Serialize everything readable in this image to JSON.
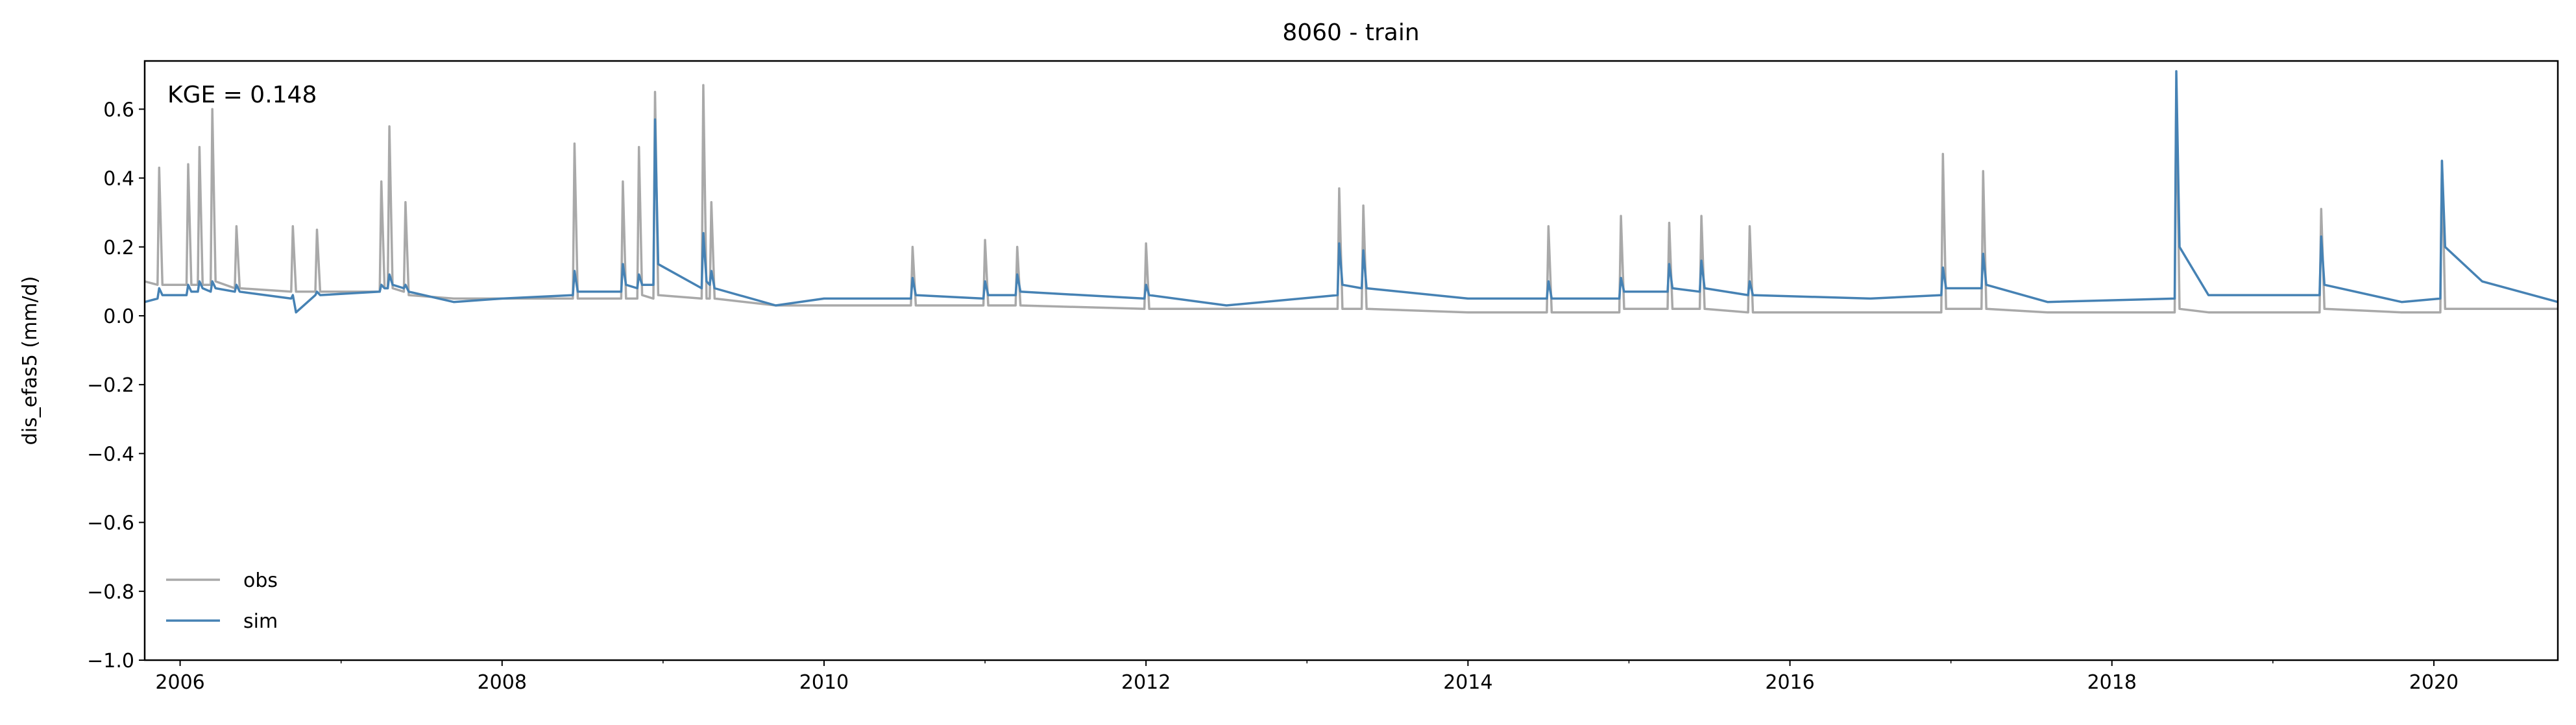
{
  "chart_data": {
    "type": "line",
    "title": "8060 - train",
    "ylabel": "dis_efas5 (mm/d)",
    "annotation": "KGE = 0.148",
    "legend": "lower left",
    "grid": false,
    "xlim": [
      2005.78,
      2020.77
    ],
    "xticks": [
      2006,
      2008,
      2010,
      2012,
      2014,
      2016,
      2018,
      2020
    ],
    "xminorticks": [
      2007,
      2009,
      2011,
      2013,
      2015,
      2017,
      2019
    ],
    "ylim": [
      -1.0,
      0.74
    ],
    "yticks": [
      {
        "value": -1.0,
        "label": "−1.0"
      },
      {
        "value": -0.8,
        "label": "−0.8"
      },
      {
        "value": -0.6,
        "label": "−0.6"
      },
      {
        "value": -0.4,
        "label": "−0.4"
      },
      {
        "value": -0.2,
        "label": "−0.2"
      },
      {
        "value": 0.0,
        "label": "0.0"
      },
      {
        "value": 0.2,
        "label": "0.2"
      },
      {
        "value": 0.4,
        "label": "0.4"
      },
      {
        "value": 0.6,
        "label": "0.6"
      }
    ],
    "x": [
      2005.78,
      2005.86,
      2005.87,
      2005.89,
      2006.04,
      2006.05,
      2006.07,
      2006.11,
      2006.12,
      2006.14,
      2006.19,
      2006.2,
      2006.22,
      2006.34,
      2006.35,
      2006.37,
      2006.69,
      2006.7,
      2006.72,
      2006.84,
      2006.85,
      2006.87,
      2007.24,
      2007.25,
      2007.27,
      2007.29,
      2007.3,
      2007.32,
      2007.39,
      2007.4,
      2007.42,
      2007.7,
      2008.0,
      2008.44,
      2008.45,
      2008.47,
      2008.74,
      2008.75,
      2008.77,
      2008.84,
      2008.85,
      2008.87,
      2008.94,
      2008.95,
      2008.97,
      2009.24,
      2009.25,
      2009.27,
      2009.29,
      2009.3,
      2009.32,
      2009.7,
      2010.0,
      2010.54,
      2010.55,
      2010.57,
      2010.99,
      2011.0,
      2011.02,
      2011.19,
      2011.2,
      2011.22,
      2011.99,
      2012.0,
      2012.02,
      2012.5,
      2013.19,
      2013.2,
      2013.22,
      2013.34,
      2013.35,
      2013.37,
      2014.0,
      2014.49,
      2014.5,
      2014.52,
      2014.94,
      2014.95,
      2014.97,
      2015.24,
      2015.25,
      2015.27,
      2015.44,
      2015.45,
      2015.47,
      2015.74,
      2015.75,
      2015.77,
      2016.5,
      2016.94,
      2016.95,
      2016.97,
      2017.19,
      2017.2,
      2017.22,
      2017.6,
      2018.39,
      2018.4,
      2018.42,
      2018.6,
      2019.29,
      2019.3,
      2019.32,
      2019.8,
      2020.04,
      2020.05,
      2020.07,
      2020.3,
      2020.77
    ],
    "series": [
      {
        "name": "obs",
        "color": "#a9a9a9",
        "values": [
          0.1,
          0.09,
          0.43,
          0.09,
          0.09,
          0.44,
          0.09,
          0.09,
          0.49,
          0.09,
          0.09,
          0.6,
          0.1,
          0.08,
          0.26,
          0.08,
          0.07,
          0.26,
          0.07,
          0.07,
          0.25,
          0.07,
          0.07,
          0.39,
          0.08,
          0.08,
          0.55,
          0.08,
          0.07,
          0.33,
          0.06,
          0.05,
          0.05,
          0.05,
          0.5,
          0.05,
          0.05,
          0.39,
          0.05,
          0.05,
          0.49,
          0.06,
          0.05,
          0.65,
          0.06,
          0.05,
          0.67,
          0.05,
          0.05,
          0.33,
          0.05,
          0.03,
          0.03,
          0.03,
          0.2,
          0.03,
          0.03,
          0.22,
          0.03,
          0.03,
          0.2,
          0.03,
          0.02,
          0.21,
          0.02,
          0.02,
          0.02,
          0.37,
          0.02,
          0.02,
          0.32,
          0.02,
          0.01,
          0.01,
          0.26,
          0.01,
          0.01,
          0.29,
          0.02,
          0.02,
          0.27,
          0.02,
          0.02,
          0.29,
          0.02,
          0.01,
          0.26,
          0.01,
          0.01,
          0.01,
          0.47,
          0.02,
          0.02,
          0.42,
          0.02,
          0.01,
          0.01,
          0.66,
          0.02,
          0.01,
          0.01,
          0.31,
          0.02,
          0.01,
          0.01,
          0.45,
          0.02,
          0.02,
          0.02
        ]
      },
      {
        "name": "sim",
        "color": "#4682b4",
        "values": [
          0.04,
          0.05,
          0.08,
          0.06,
          0.06,
          0.09,
          0.07,
          0.07,
          0.1,
          0.08,
          0.07,
          0.1,
          0.08,
          0.07,
          0.09,
          0.07,
          0.05,
          0.06,
          0.01,
          0.06,
          0.07,
          0.06,
          0.07,
          0.09,
          0.08,
          0.08,
          0.12,
          0.09,
          0.08,
          0.09,
          0.07,
          0.04,
          0.05,
          0.06,
          0.13,
          0.07,
          0.07,
          0.15,
          0.09,
          0.08,
          0.12,
          0.09,
          0.09,
          0.57,
          0.15,
          0.08,
          0.24,
          0.1,
          0.09,
          0.13,
          0.08,
          0.03,
          0.05,
          0.05,
          0.11,
          0.06,
          0.05,
          0.1,
          0.06,
          0.06,
          0.12,
          0.07,
          0.05,
          0.09,
          0.06,
          0.03,
          0.06,
          0.21,
          0.09,
          0.08,
          0.19,
          0.08,
          0.05,
          0.05,
          0.1,
          0.05,
          0.05,
          0.11,
          0.07,
          0.07,
          0.15,
          0.08,
          0.07,
          0.16,
          0.08,
          0.06,
          0.1,
          0.06,
          0.05,
          0.06,
          0.14,
          0.08,
          0.08,
          0.18,
          0.09,
          0.04,
          0.05,
          0.71,
          0.2,
          0.06,
          0.06,
          0.23,
          0.09,
          0.04,
          0.05,
          0.45,
          0.2,
          0.1,
          0.04
        ]
      }
    ]
  }
}
